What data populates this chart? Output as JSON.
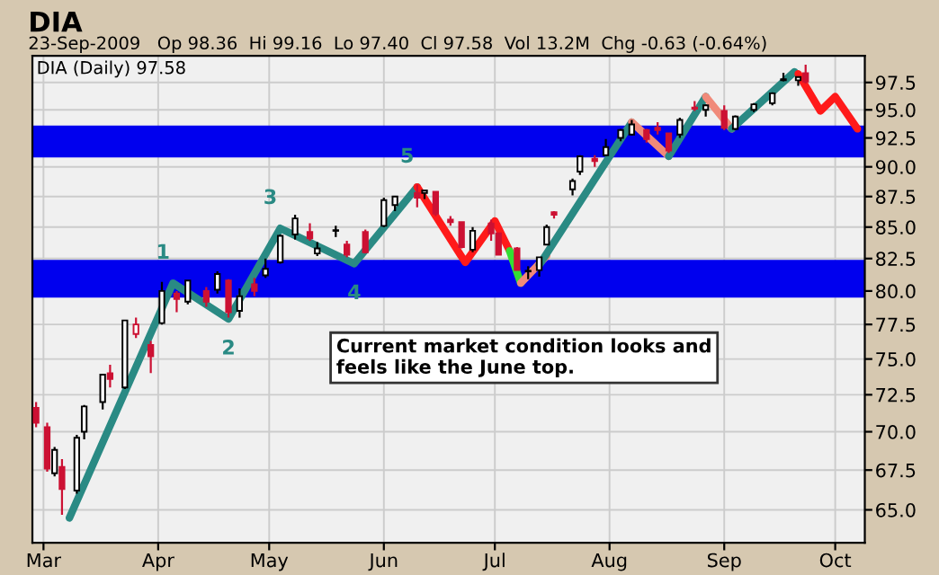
{
  "chart_data": {
    "type": "candlestick",
    "title": "DIA",
    "subtitle": "23-Sep-2009   Op 98.36  Hi 99.16  Lo 97.40  Cl 97.58  Vol 13.2M  Chg -0.63 (-0.64%)",
    "x": [
      "2009-02-27",
      "2009-03-02",
      "2009-03-04",
      "2009-03-06",
      "2009-03-10",
      "2009-03-12",
      "2009-03-17",
      "2009-03-19",
      "2009-03-23",
      "2009-03-26",
      "2009-03-30",
      "2009-04-02",
      "2009-04-06",
      "2009-04-09",
      "2009-04-14",
      "2009-04-17",
      "2009-04-20",
      "2009-04-23",
      "2009-04-27",
      "2009-04-30",
      "2009-05-04",
      "2009-05-08",
      "2009-05-12",
      "2009-05-14",
      "2009-05-19",
      "2009-05-22",
      "2009-05-27",
      "2009-06-01",
      "2009-06-04",
      "2009-06-10",
      "2009-06-12",
      "2009-06-15",
      "2009-06-19",
      "2009-06-22",
      "2009-06-25",
      "2009-06-30",
      "2009-07-02",
      "2009-07-07",
      "2009-07-10",
      "2009-07-13",
      "2009-07-15",
      "2009-07-17",
      "2009-07-22",
      "2009-07-24",
      "2009-07-28",
      "2009-07-31",
      "2009-08-04",
      "2009-08-07",
      "2009-08-11",
      "2009-08-14",
      "2009-08-17",
      "2009-08-20",
      "2009-08-24",
      "2009-08-27",
      "2009-09-01",
      "2009-09-04",
      "2009-09-09",
      "2009-09-14",
      "2009-09-17",
      "2009-09-21",
      "2009-09-23"
    ],
    "ohlc": [
      [
        71.6,
        72.0,
        70.3,
        70.6
      ],
      [
        70.3,
        70.6,
        67.4,
        67.6
      ],
      [
        67.3,
        69.0,
        67.1,
        68.8
      ],
      [
        67.7,
        68.2,
        64.7,
        66.3
      ],
      [
        66.2,
        69.8,
        66.0,
        69.6
      ],
      [
        70.0,
        71.8,
        69.5,
        71.7
      ],
      [
        72.0,
        73.9,
        71.5,
        73.9
      ],
      [
        74.0,
        74.6,
        73.0,
        73.6
      ],
      [
        73.0,
        77.8,
        72.9,
        77.8
      ],
      [
        76.8,
        78.0,
        76.5,
        77.5
      ],
      [
        76.0,
        76.3,
        74.0,
        75.2
      ],
      [
        77.6,
        80.7,
        77.5,
        80.0
      ],
      [
        79.8,
        80.0,
        78.4,
        79.4
      ],
      [
        79.2,
        80.8,
        79.0,
        80.8
      ],
      [
        80.0,
        80.3,
        78.8,
        79.2
      ],
      [
        80.1,
        81.5,
        79.8,
        81.3
      ],
      [
        80.8,
        80.9,
        78.0,
        78.4
      ],
      [
        78.5,
        80.2,
        78.0,
        79.6
      ],
      [
        80.5,
        81.0,
        79.6,
        80.0
      ],
      [
        81.2,
        82.5,
        81.0,
        81.7
      ],
      [
        82.2,
        84.4,
        82.1,
        84.3
      ],
      [
        84.4,
        86.0,
        84.0,
        85.7
      ],
      [
        84.6,
        85.3,
        83.9,
        84.1
      ],
      [
        82.9,
        83.8,
        82.7,
        83.3
      ],
      [
        84.7,
        85.1,
        84.2,
        84.7
      ],
      [
        83.6,
        83.9,
        82.6,
        82.8
      ],
      [
        84.6,
        84.8,
        82.9,
        83.0
      ],
      [
        85.1,
        87.4,
        85.0,
        87.2
      ],
      [
        86.8,
        87.5,
        86.3,
        87.5
      ],
      [
        87.8,
        88.5,
        86.6,
        87.4
      ],
      [
        87.8,
        88.0,
        87.3,
        88.0
      ],
      [
        87.9,
        87.9,
        85.9,
        86.1
      ],
      [
        85.6,
        85.9,
        85.1,
        85.4
      ],
      [
        85.4,
        85.4,
        83.3,
        83.4
      ],
      [
        83.2,
        85.0,
        83.0,
        84.7
      ],
      [
        85.3,
        85.6,
        83.9,
        84.5
      ],
      [
        84.5,
        84.5,
        82.8,
        82.8
      ],
      [
        83.3,
        83.4,
        81.6,
        81.6
      ],
      [
        81.5,
        81.9,
        80.9,
        81.5
      ],
      [
        81.6,
        82.6,
        81.1,
        82.6
      ],
      [
        83.6,
        85.2,
        83.6,
        85.0
      ],
      [
        86.2,
        86.3,
        85.7,
        86.0
      ],
      [
        88.1,
        89.0,
        87.6,
        88.8
      ],
      [
        89.6,
        91.0,
        89.3,
        90.9
      ],
      [
        90.7,
        91.0,
        90.0,
        90.5
      ],
      [
        91.0,
        92.4,
        90.9,
        91.7
      ],
      [
        92.5,
        93.3,
        92.2,
        93.2
      ],
      [
        92.8,
        94.1,
        92.7,
        93.7
      ],
      [
        93.2,
        93.3,
        92.1,
        92.4
      ],
      [
        93.4,
        93.9,
        92.8,
        93.2
      ],
      [
        92.9,
        92.9,
        91.2,
        91.4
      ],
      [
        92.8,
        94.3,
        92.5,
        94.1
      ],
      [
        95.2,
        95.8,
        94.9,
        95.1
      ],
      [
        95.0,
        95.5,
        94.4,
        95.4
      ],
      [
        94.9,
        95.4,
        93.2,
        93.4
      ],
      [
        93.3,
        94.5,
        93.2,
        94.4
      ],
      [
        95.0,
        95.6,
        94.8,
        95.5
      ],
      [
        95.6,
        96.6,
        95.4,
        96.5
      ],
      [
        97.7,
        98.4,
        97.6,
        97.8
      ],
      [
        97.7,
        98.0,
        97.2,
        98.0
      ],
      [
        98.36,
        99.16,
        97.4,
        97.58
      ]
    ],
    "colors": [
      "#cc1133",
      "#cc1133",
      "#000000",
      "#cc1133",
      "#000000",
      "#000000",
      "#000000",
      "#cc1133",
      "#000000",
      "#cc1133",
      "#cc1133",
      "#000000",
      "#cc1133",
      "#000000",
      "#cc1133",
      "#000000",
      "#cc1133",
      "#000000",
      "#cc1133",
      "#000000",
      "#000000",
      "#000000",
      "#cc1133",
      "#000000",
      "#000000",
      "#cc1133",
      "#cc1133",
      "#000000",
      "#000000",
      "#cc1133",
      "#000000",
      "#cc1133",
      "#cc1133",
      "#cc1133",
      "#000000",
      "#cc1133",
      "#cc1133",
      "#cc1133",
      "#000000",
      "#000000",
      "#000000",
      "#cc1133",
      "#000000",
      "#000000",
      "#cc1133",
      "#000000",
      "#000000",
      "#000000",
      "#cc1133",
      "#cc1133",
      "#cc1133",
      "#000000",
      "#cc1133",
      "#000000",
      "#cc1133",
      "#000000",
      "#000000",
      "#000000",
      "#000000",
      "#000000",
      "#cc1133"
    ],
    "bands": [
      {
        "axis": "y",
        "from": 79.5,
        "to": 82.4,
        "color": "#0000ee"
      },
      {
        "axis": "y",
        "from": 90.8,
        "to": 93.6,
        "color": "#0000ee"
      }
    ],
    "series": [
      {
        "type": "line",
        "color": "#2a8a84",
        "x": [
          "2009-03-08",
          "2009-04-05",
          "2009-04-20",
          "2009-05-04",
          "2009-05-24",
          "2009-06-10"
        ],
        "values": [
          64.5,
          80.6,
          77.9,
          84.9,
          82.1,
          88.3
        ]
      },
      {
        "type": "line",
        "color": "#ff1a1a",
        "x": [
          "2009-06-10",
          "2009-06-23",
          "2009-07-01",
          "2009-07-05"
        ],
        "values": [
          88.3,
          82.2,
          85.5,
          83.1
        ]
      },
      {
        "type": "line",
        "color": "#33dd33",
        "x": [
          "2009-07-05",
          "2009-07-08"
        ],
        "values": [
          83.1,
          80.6
        ]
      },
      {
        "type": "line",
        "color": "#f08a7a",
        "x": [
          "2009-07-08",
          "2009-07-15"
        ],
        "values": [
          80.6,
          82.7
        ]
      },
      {
        "type": "line",
        "color": "#2a8a84",
        "x": [
          "2009-07-13",
          "2009-08-07"
        ],
        "values": [
          82.0,
          93.9
        ]
      },
      {
        "type": "line",
        "color": "#f08a7a",
        "x": [
          "2009-08-07",
          "2009-08-17"
        ],
        "values": [
          93.9,
          90.9
        ]
      },
      {
        "type": "line",
        "color": "#2a8a84",
        "x": [
          "2009-08-17",
          "2009-08-27"
        ],
        "values": [
          90.9,
          96.2
        ]
      },
      {
        "type": "line",
        "color": "#f08a7a",
        "x": [
          "2009-08-27",
          "2009-09-03"
        ],
        "values": [
          96.2,
          93.3
        ]
      },
      {
        "type": "line",
        "color": "#2a8a84",
        "x": [
          "2009-09-03",
          "2009-09-20"
        ],
        "values": [
          93.3,
          98.5
        ]
      },
      {
        "type": "line",
        "color": "#ff1a1a",
        "x": [
          "2009-09-21",
          "2009-09-27",
          "2009-10-01",
          "2009-10-07"
        ],
        "values": [
          98.3,
          94.9,
          96.2,
          93.3
        ]
      }
    ],
    "annotations": [
      "DIA (Daily) 97.58",
      {
        "text": "1",
        "x": "2009-04-05",
        "y": 80.6
      },
      {
        "text": "2",
        "x": "2009-04-20",
        "y": 77.9
      },
      {
        "text": "3",
        "x": "2009-05-04",
        "y": 84.9
      },
      {
        "text": "4",
        "x": "2009-05-24",
        "y": 82.1
      },
      {
        "text": "5",
        "x": "2009-06-10",
        "y": 88.3
      },
      "Current market condition looks and\nfeels like the June top."
    ],
    "xlim": [
      "2009-02-26",
      "2009-10-09"
    ],
    "xticks": [
      {
        "value": "2009-03-01",
        "label": "Mar"
      },
      {
        "value": "2009-04-01",
        "label": "Apr"
      },
      {
        "value": "2009-05-01",
        "label": "May"
      },
      {
        "value": "2009-06-01",
        "label": "Jun"
      },
      {
        "value": "2009-07-01",
        "label": "Jul"
      },
      {
        "value": "2009-08-01",
        "label": "Aug"
      },
      {
        "value": "2009-09-01",
        "label": "Sep"
      },
      {
        "value": "2009-10-01",
        "label": "Oct"
      }
    ],
    "log": "y",
    "ylim": [
      63,
      100
    ],
    "yticks": [
      {
        "value": 65,
        "label": "65.0"
      },
      {
        "value": 67.5,
        "label": "67.5"
      },
      {
        "value": 70,
        "label": "70.0"
      },
      {
        "value": 72.5,
        "label": "72.5"
      },
      {
        "value": 75,
        "label": "75.0"
      },
      {
        "value": 77.5,
        "label": "77.5"
      },
      {
        "value": 80,
        "label": "80.0"
      },
      {
        "value": 82.5,
        "label": "82.5"
      },
      {
        "value": 85,
        "label": "85.0"
      },
      {
        "value": 87.5,
        "label": "87.5"
      },
      {
        "value": 90,
        "label": "90.0"
      },
      {
        "value": 92.5,
        "label": "92.5"
      },
      {
        "value": 95,
        "label": "95.0"
      },
      {
        "value": 97.5,
        "label": "97.5"
      }
    ],
    "grid": true,
    "marker": "none",
    "line_style": "solid"
  }
}
